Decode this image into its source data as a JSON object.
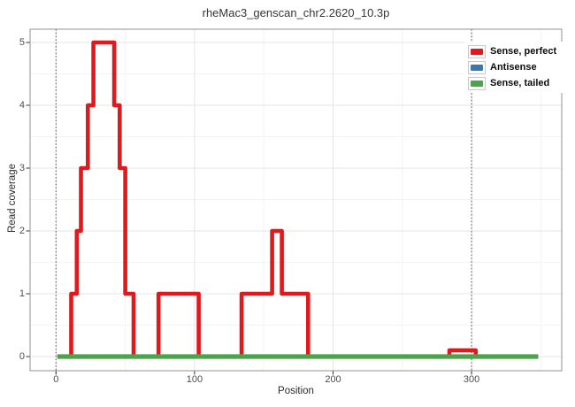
{
  "title": "rheMac3_genscan_chr2.2620_10.3p",
  "axes": {
    "x_label": "Position",
    "y_label": "Read coverage",
    "x_ticks": [
      0,
      100,
      200,
      300
    ],
    "y_ticks": [
      0,
      1,
      2,
      3,
      4,
      5
    ]
  },
  "legend": {
    "position": "top-right-inside",
    "items": [
      {
        "label": "Sense, perfect",
        "color": "#E2191C"
      },
      {
        "label": "Antisense",
        "color": "#3A76B0"
      },
      {
        "label": "Sense, tailed",
        "color": "#4BA44B"
      }
    ]
  },
  "colors": {
    "grid_major": "#e4e4e4",
    "grid_minor": "#f3f3f3",
    "panel_border": "#909090",
    "guide_line": "#4d4d4d",
    "tick_mark": "#333333"
  },
  "chart_data": {
    "type": "line",
    "subtype": "step-coverage",
    "title": "rheMac3_genscan_chr2.2620_10.3p",
    "xlabel": "Position",
    "ylabel": "Read coverage",
    "xlim": [
      -19,
      366
    ],
    "ylim": [
      -0.23,
      5.21
    ],
    "x_major_gridlines": [
      0,
      100,
      200,
      300
    ],
    "x_minor_gridlines": [
      50,
      150,
      250,
      350
    ],
    "y_major_gridlines": [
      0,
      1,
      2,
      3,
      4,
      5
    ],
    "y_minor_gridlines": [
      0.5,
      1.5,
      2.5,
      3.5,
      4.5
    ],
    "guide_vlines_dotted": [
      0,
      300
    ],
    "series": [
      {
        "name": "Antisense",
        "color": "#3A76B0",
        "style": "step",
        "note": "constant 0, hidden beneath green baseline",
        "points": [
          [
            1,
            0
          ],
          [
            348,
            0
          ]
        ]
      },
      {
        "name": "Sense, perfect",
        "color": "#E2191C",
        "style": "step",
        "points": [
          [
            1,
            0
          ],
          [
            11,
            1
          ],
          [
            15,
            2
          ],
          [
            18,
            3
          ],
          [
            23,
            4
          ],
          [
            27,
            5
          ],
          [
            42,
            4
          ],
          [
            46,
            3
          ],
          [
            50,
            1
          ],
          [
            56,
            0
          ],
          [
            74,
            1
          ],
          [
            103,
            0
          ],
          [
            134,
            1
          ],
          [
            156,
            2
          ],
          [
            163,
            1
          ],
          [
            182,
            0
          ],
          [
            284,
            0.1
          ],
          [
            303,
            0
          ],
          [
            348,
            0
          ]
        ]
      },
      {
        "name": "Sense, tailed",
        "color": "#4BA44B",
        "style": "step",
        "points": [
          [
            1,
            0
          ],
          [
            348,
            0
          ]
        ]
      }
    ]
  }
}
